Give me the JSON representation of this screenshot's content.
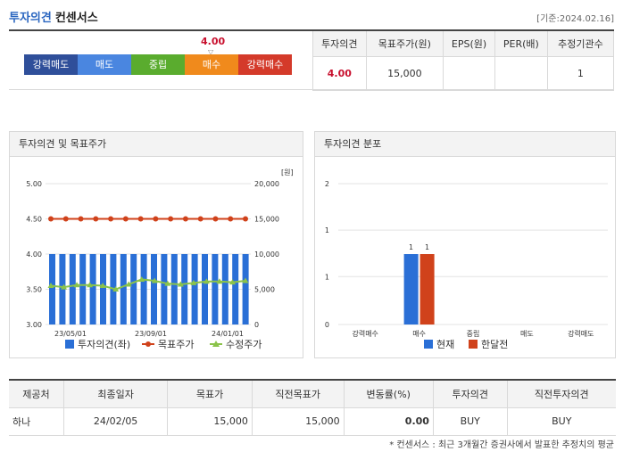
{
  "header": {
    "title_blue": "투자의견",
    "title_dark": "컨센서스",
    "stamp": "[기준:2024.02.16]"
  },
  "scale": {
    "current_value": "4.00",
    "marker_glyph": "▽",
    "items": [
      {
        "label": "강력매도",
        "color": "#2f4f9a"
      },
      {
        "label": "매도",
        "color": "#4a86e0"
      },
      {
        "label": "중립",
        "color": "#5aac2e"
      },
      {
        "label": "매수",
        "color": "#f08a1c"
      },
      {
        "label": "강력매수",
        "color": "#d43a2a"
      }
    ]
  },
  "summary": {
    "headers": [
      "투자의견",
      "목표주가(원)",
      "EPS(원)",
      "PER(배)",
      "추정기관수"
    ],
    "values": [
      "4.00",
      "15,000",
      "",
      "",
      "1"
    ]
  },
  "chart1": {
    "title": "투자의견 및 목표주가",
    "unit_label": "[원]",
    "legend": [
      "투자의견(좌)",
      "목표주가",
      "수정주가"
    ],
    "colors": {
      "bar": "#2a6fd6",
      "target": "#d0421b",
      "adjusted": "#8bc34a"
    }
  },
  "chart2": {
    "title": "투자의견 분포",
    "legend": [
      "현재",
      "한달전"
    ],
    "colors": {
      "current": "#2a6fd6",
      "prev": "#d0421b"
    }
  },
  "chart_data": [
    {
      "type": "bar",
      "title": "투자의견 및 목표주가",
      "left_axis": {
        "ylim": [
          3.0,
          5.0
        ],
        "ticks": [
          "5.00",
          "4.50",
          "4.00",
          "3.50",
          "3.00"
        ]
      },
      "right_axis": {
        "ylim": [
          0,
          20000
        ],
        "ticks": [
          "20,000",
          "15,000",
          "10,000",
          "5,000",
          "0"
        ]
      },
      "x_ticks": [
        "23/05/01",
        "23/09/01",
        "24/01/01"
      ],
      "series": [
        {
          "name": "투자의견(좌)",
          "kind": "bar",
          "values": [
            4,
            4,
            4,
            4,
            4,
            4,
            4,
            4,
            4,
            4,
            4,
            4,
            4,
            4,
            4,
            4,
            4,
            4,
            4,
            4
          ]
        },
        {
          "name": "목표주가",
          "kind": "line",
          "values": [
            15000,
            15000,
            15000,
            15000,
            15000,
            15000,
            15000,
            15000,
            15000,
            15000,
            15000,
            15000,
            15000,
            15000
          ]
        },
        {
          "name": "수정주가",
          "kind": "line",
          "values": [
            5500,
            5300,
            5600,
            5600,
            5500,
            5000,
            5700,
            6400,
            6200,
            5800,
            5700,
            5900,
            6100,
            6100,
            6000,
            6200
          ]
        }
      ]
    },
    {
      "type": "bar",
      "title": "투자의견 분포",
      "ylim": [
        0,
        2
      ],
      "y_ticks": [
        "2",
        "1",
        "1",
        "0"
      ],
      "categories": [
        "강력매수",
        "매수",
        "중립",
        "매도",
        "강력매도"
      ],
      "series": [
        {
          "name": "현재",
          "values": [
            0,
            1,
            0,
            0,
            0
          ]
        },
        {
          "name": "한달전",
          "values": [
            0,
            1,
            0,
            0,
            0
          ]
        }
      ]
    }
  ],
  "providers": {
    "headers": [
      "제공처",
      "최종일자",
      "목표가",
      "직전목표가",
      "변동률(%)",
      "투자의견",
      "직전투자의견"
    ],
    "rows": [
      [
        "하나",
        "24/02/05",
        "15,000",
        "15,000",
        "0.00",
        "BUY",
        "BUY"
      ]
    ]
  },
  "footnote": "* 컨센서스 : 최근 3개월간 증권사에서 발표한 추정치의 평균"
}
